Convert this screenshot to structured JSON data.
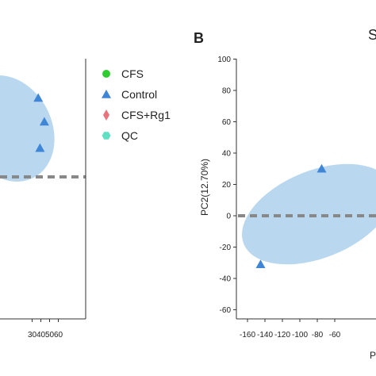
{
  "chart_data": [
    {
      "type": "scatter",
      "panel": "A",
      "panel_label": "",
      "x_tick_labels": [
        "30",
        "40",
        "50",
        "60"
      ],
      "series": [
        {
          "name": "Control",
          "points": [
            [
              37,
              63
            ],
            [
              44,
              44
            ],
            [
              39,
              23
            ]
          ]
        }
      ],
      "dashed_line_y": 0,
      "xlim_visible": [
        19,
        62
      ],
      "ylim_visible": [
        -100,
        100
      ],
      "grid": false
    },
    {
      "type": "scatter",
      "panel": "B",
      "panel_label": "B",
      "title_fragment": "S",
      "ylabel": "PC2(12.70%)",
      "xlabel_fragment": "P",
      "y_tick_labels": [
        "100",
        "80",
        "60",
        "40",
        "20",
        "0",
        "-20",
        "-40",
        "-60"
      ],
      "x_tick_labels": [
        "-160",
        "-140",
        "-120",
        "-100",
        "-80",
        "-60"
      ],
      "series": [
        {
          "name": "Control",
          "points": [
            [
              -145,
              -31
            ],
            [
              -75,
              30
            ]
          ]
        }
      ],
      "dashed_line_y": 0,
      "ylim": [
        -67,
        102
      ],
      "xlim_visible": [
        -168,
        -55
      ],
      "grid": false
    }
  ],
  "legend": [
    {
      "label": "CFS",
      "marker": "circle",
      "color": "#2ecc2e"
    },
    {
      "label": "Control",
      "marker": "triangle",
      "color": "#3f86d6"
    },
    {
      "label": "CFS+Rg1",
      "marker": "diamond",
      "color": "#e8737d"
    },
    {
      "label": "QC",
      "marker": "hexagon",
      "color": "#5fe0c2"
    }
  ],
  "colors": {
    "ellipse_fill": "#b9d8f0",
    "dashed_line": "#888888",
    "control_marker": "#3f86d6",
    "axis": "#333333"
  }
}
